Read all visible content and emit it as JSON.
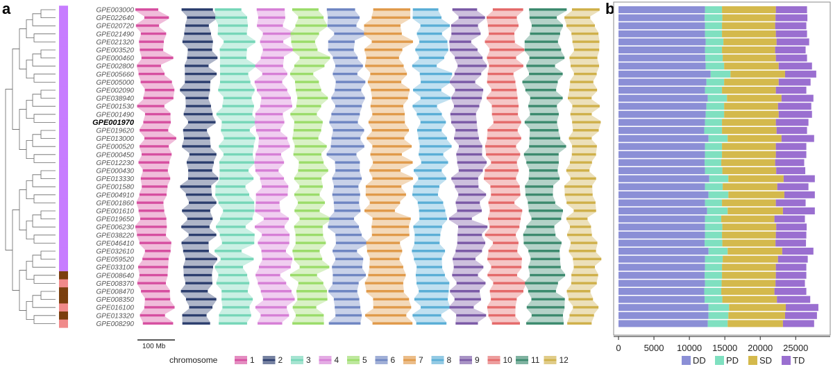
{
  "panels": {
    "a_label": "a",
    "b_label": "b"
  },
  "samples": [
    "GPE003000",
    "GPE022640",
    "GPE020720",
    "GPE021490",
    "GPE021320",
    "GPE003520",
    "GPE000460",
    "GPE002800",
    "GPE005660",
    "GPE005000",
    "GPE002090",
    "GPE038940",
    "GPE001530",
    "GPE001490",
    "GPE001970",
    "GPE019620",
    "GPE013000",
    "GPE000520",
    "GPE000450",
    "GPE012230",
    "GPE000430",
    "GPE013330",
    "GPE001580",
    "GPE004910",
    "GPE001860",
    "GPE001610",
    "GPE019650",
    "GPE006230",
    "GPE038220",
    "GPE046410",
    "GPE032610",
    "GPE059520",
    "GPE033100",
    "GPE008640",
    "GPE008370",
    "GPE008470",
    "GPE008350",
    "GPE016100",
    "GPE013320",
    "GPE008290"
  ],
  "highlight_sample": "GPE001970",
  "group_bar": {
    "colors": {
      "purple": "#c77dff",
      "brown": "#7b3f0e",
      "pink": "#f08a8a"
    },
    "groups": [
      "purple",
      "purple",
      "purple",
      "purple",
      "purple",
      "purple",
      "purple",
      "purple",
      "purple",
      "purple",
      "purple",
      "purple",
      "purple",
      "purple",
      "purple",
      "purple",
      "purple",
      "purple",
      "purple",
      "purple",
      "purple",
      "purple",
      "purple",
      "purple",
      "purple",
      "purple",
      "purple",
      "purple",
      "purple",
      "purple",
      "purple",
      "purple",
      "purple",
      "brown",
      "pink",
      "brown",
      "brown",
      "pink",
      "brown",
      "pink"
    ]
  },
  "scale_bar": {
    "label": "100 Mb"
  },
  "chromosome_legend": {
    "title": "chromosome",
    "items": [
      {
        "label": "1",
        "color": "#d64fa0"
      },
      {
        "label": "2",
        "color": "#2c3e6e"
      },
      {
        "label": "3",
        "color": "#76d6b8"
      },
      {
        "label": "4",
        "color": "#d67fd6"
      },
      {
        "label": "5",
        "color": "#9bdc6a"
      },
      {
        "label": "6",
        "color": "#6f86c2"
      },
      {
        "label": "7",
        "color": "#e09a4a"
      },
      {
        "label": "8",
        "color": "#5aaed6"
      },
      {
        "label": "9",
        "color": "#7b5aa6"
      },
      {
        "label": "10",
        "color": "#e46a6a"
      },
      {
        "label": "11",
        "color": "#3c8a6e"
      },
      {
        "label": "12",
        "color": "#cfb04a"
      }
    ]
  },
  "chart_data": {
    "type": "bar",
    "stacked": true,
    "orientation": "horizontal",
    "categories": [
      "GPE003000",
      "GPE022640",
      "GPE020720",
      "GPE021490",
      "GPE021320",
      "GPE003520",
      "GPE000460",
      "GPE002800",
      "GPE005660",
      "GPE005000",
      "GPE002090",
      "GPE038940",
      "GPE001530",
      "GPE001490",
      "GPE001970",
      "GPE019620",
      "GPE013000",
      "GPE000520",
      "GPE000450",
      "GPE012230",
      "GPE000430",
      "GPE013330",
      "GPE001580",
      "GPE004910",
      "GPE001860",
      "GPE001610",
      "GPE019650",
      "GPE006230",
      "GPE038220",
      "GPE046410",
      "GPE032610",
      "GPE059520",
      "GPE033100",
      "GPE008640",
      "GPE008370",
      "GPE008470",
      "GPE008350",
      "GPE016100",
      "GPE013320",
      "GPE008290"
    ],
    "series": [
      {
        "name": "DD",
        "color": "#8b8fd6",
        "values": [
          12200,
          12150,
          12200,
          12200,
          12300,
          12200,
          12250,
          12300,
          13000,
          12400,
          12200,
          12600,
          12400,
          12300,
          12200,
          12100,
          12700,
          12200,
          12200,
          12150,
          12200,
          12800,
          12200,
          12700,
          12200,
          12500,
          12200,
          12200,
          12200,
          12150,
          12700,
          12200,
          12200,
          12150,
          12200,
          12100,
          12150,
          12700,
          12700,
          12600
        ]
      },
      {
        "name": "PD",
        "color": "#7fe0c0",
        "values": [
          2400,
          2500,
          2400,
          2400,
          2500,
          2400,
          2450,
          2600,
          2800,
          2500,
          2400,
          2700,
          2500,
          2600,
          2400,
          2500,
          2700,
          2400,
          2400,
          2350,
          2450,
          2700,
          2500,
          2800,
          2400,
          2900,
          2300,
          2450,
          2400,
          2500,
          2700,
          2500,
          2400,
          2450,
          2350,
          2400,
          2500,
          2900,
          2800,
          2800
        ]
      },
      {
        "name": "SD",
        "color": "#d4b94c",
        "values": [
          7600,
          7500,
          7500,
          7600,
          7500,
          7500,
          7500,
          7700,
          7700,
          7700,
          7600,
          7700,
          7600,
          7700,
          7600,
          7700,
          7600,
          7600,
          7600,
          7600,
          7600,
          7800,
          7700,
          7900,
          7600,
          7800,
          7500,
          7600,
          7600,
          7500,
          7700,
          7800,
          7600,
          7600,
          7600,
          7500,
          7700,
          8000,
          8000,
          7800
        ]
      },
      {
        "name": "TD",
        "color": "#9a6fd0",
        "values": [
          4400,
          4500,
          4400,
          4400,
          4600,
          4300,
          4400,
          4700,
          4400,
          4500,
          4300,
          4500,
          4700,
          4700,
          4600,
          4300,
          4600,
          4300,
          4300,
          4100,
          4100,
          4400,
          4400,
          4300,
          4200,
          4500,
          4300,
          4300,
          4300,
          4300,
          4400,
          4200,
          4300,
          4300,
          4150,
          4500,
          4700,
          4600,
          4500,
          4400
        ]
      }
    ],
    "x_ticks": [
      "0",
      "5000",
      "10000",
      "15000",
      "20000",
      "25000"
    ],
    "xlim": [
      0,
      28500
    ],
    "legend": [
      "DD",
      "PD",
      "SD",
      "TD"
    ],
    "legend_position": "bottom",
    "grid": false
  }
}
